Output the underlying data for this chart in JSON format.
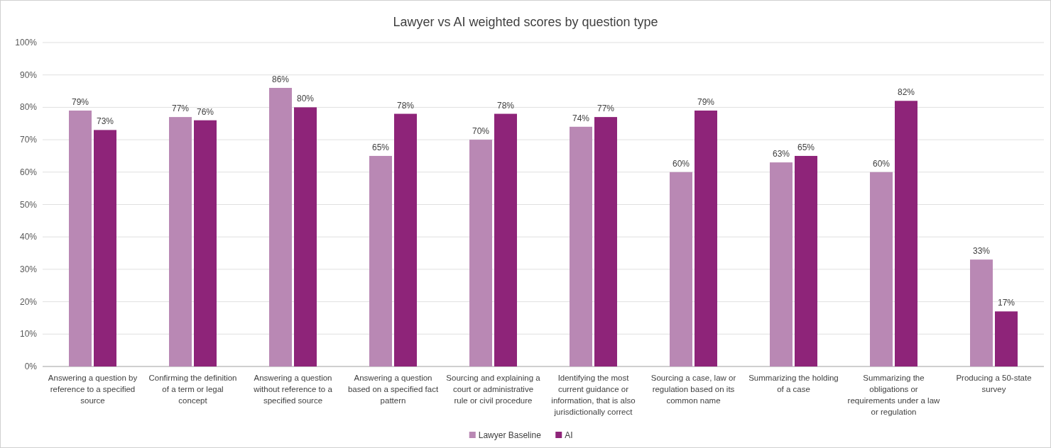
{
  "chart_data": {
    "type": "bar",
    "title": "Lawyer vs AI weighted scores by question type",
    "categories": [
      "Answering a question by reference to a specified source",
      "Confirming the definition of a term or legal concept",
      "Answering a question without reference to a specified source",
      "Answering a question based on a specified fact pattern",
      "Sourcing and explaining a court or administrative rule or civil procedure",
      "Identifying the most current guidance or information, that is also jurisdictionally correct",
      "Sourcing a case, law or regulation based on its common name",
      "Summarizing the holding of a case",
      "Summarizing the obligations or requirements under a law or regulation",
      "Producing a 50-state survey"
    ],
    "series": [
      {
        "name": "Lawyer Baseline",
        "color": "#b988b4",
        "values": [
          79,
          77,
          86,
          65,
          70,
          74,
          60,
          63,
          60,
          33
        ],
        "value_labels": [
          "79%",
          "77%",
          "86%",
          "65%",
          "70%",
          "74%",
          "60%",
          "63%",
          "60%",
          "33%"
        ]
      },
      {
        "name": "AI",
        "color": "#8e2479",
        "values": [
          73,
          76,
          80,
          78,
          78,
          77,
          79,
          65,
          82,
          17
        ],
        "value_labels": [
          "73%",
          "76%",
          "80%",
          "78%",
          "78%",
          "77%",
          "79%",
          "65%",
          "82%",
          "17%"
        ]
      }
    ],
    "ylim": [
      0,
      100
    ],
    "yticks": [
      {
        "value": 0,
        "label": "0%"
      },
      {
        "value": 10,
        "label": "10%"
      },
      {
        "value": 20,
        "label": "20%"
      },
      {
        "value": 30,
        "label": "30%"
      },
      {
        "value": 40,
        "label": "40%"
      },
      {
        "value": 50,
        "label": "50%"
      },
      {
        "value": 60,
        "label": "60%"
      },
      {
        "value": 70,
        "label": "70%"
      },
      {
        "value": 80,
        "label": "80%"
      },
      {
        "value": 90,
        "label": "90%"
      },
      {
        "value": 100,
        "label": "100%"
      }
    ],
    "grid": "y",
    "legend": "bottom"
  }
}
